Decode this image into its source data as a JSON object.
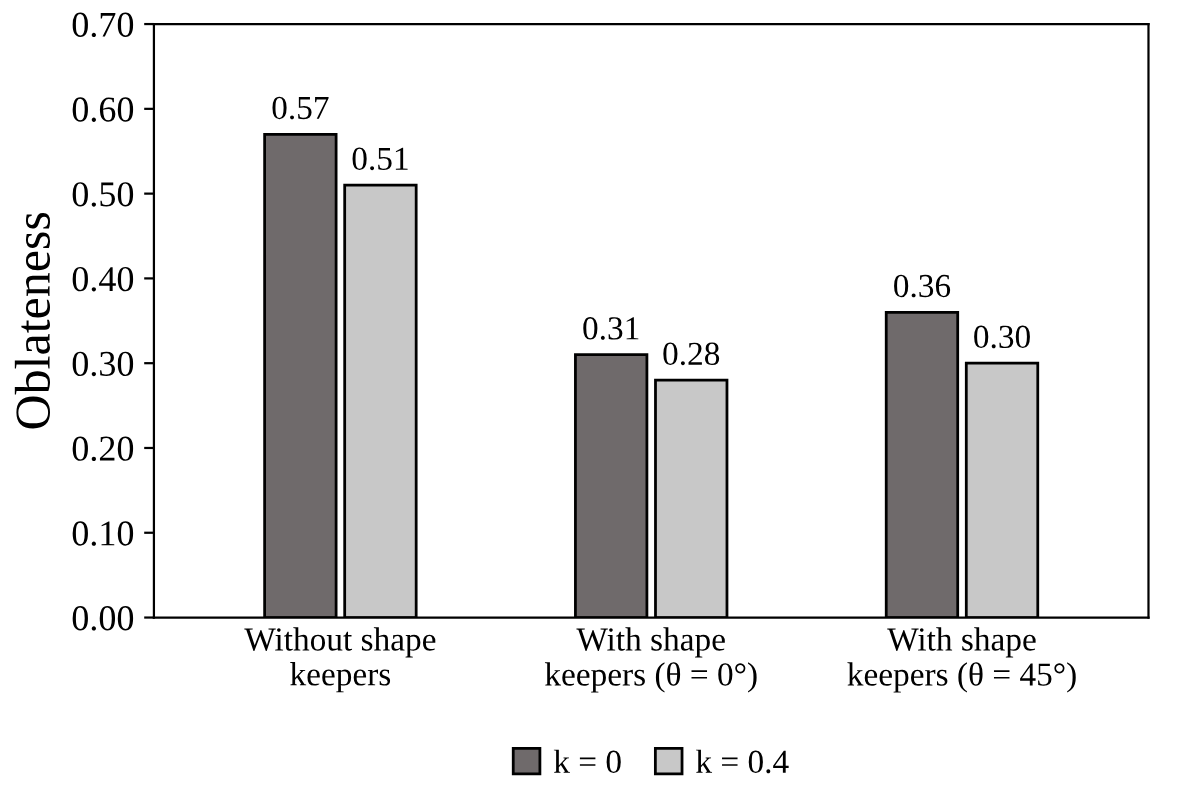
{
  "chart_data": {
    "type": "bar",
    "ylabel": "Oblateness",
    "categories": [
      "Without shape\nkeepers",
      "With shape\nkeepers (θ = 0°)",
      "With shape\nkeepers (θ = 45°)"
    ],
    "series": [
      {
        "name": "k = 0",
        "color": "#6f6a6b",
        "values": [
          0.57,
          0.31,
          0.36
        ],
        "value_labels": [
          "0.57",
          "0.31",
          "0.36"
        ]
      },
      {
        "name": "k = 0.4",
        "color": "#c8c8c8",
        "values": [
          0.51,
          0.28,
          0.3
        ],
        "value_labels": [
          "0.51",
          "0.28",
          "0.30"
        ]
      }
    ],
    "ylim": [
      0,
      0.7
    ],
    "yticks": [
      {
        "value": 0,
        "label": "0.00"
      },
      {
        "value": 0.1,
        "label": "0.10"
      },
      {
        "value": 0.2,
        "label": "0.20"
      },
      {
        "value": 0.3,
        "label": "0.30"
      },
      {
        "value": 0.4,
        "label": "0.40"
      },
      {
        "value": 0.5,
        "label": "0.50"
      },
      {
        "value": 0.6,
        "label": "0.60"
      },
      {
        "value": 0.7,
        "label": "0.70"
      }
    ],
    "grid": false,
    "legend": "bottom"
  }
}
